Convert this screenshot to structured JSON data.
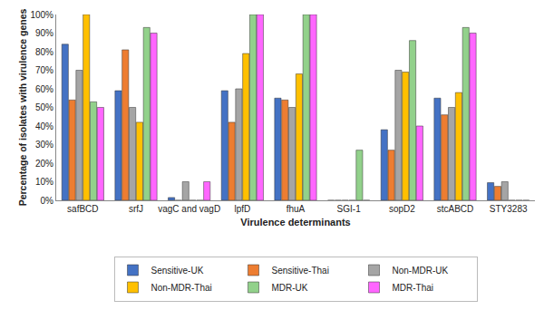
{
  "chart_data": {
    "type": "bar",
    "x_label": "Virulence determinants",
    "y_label": "Percentage of isolates with virulence genes",
    "categories": [
      "safBCD",
      "srfJ",
      "vagC and vagD",
      "lpfD",
      "fhuA",
      "SGI-1",
      "sopD2",
      "stcABCD",
      "STY3283"
    ],
    "series": [
      {
        "name": "Sensitive-UK",
        "color": "#4472c4",
        "values": [
          84,
          59,
          1.5,
          59,
          55,
          0,
          38,
          55,
          9.5
        ]
      },
      {
        "name": "Sensitive-Thai",
        "color": "#ed7d31",
        "values": [
          54,
          81,
          0,
          42,
          54,
          0,
          27,
          46,
          7.5
        ]
      },
      {
        "name": "Non-MDR-UK",
        "color": "#a5a5a5",
        "values": [
          70,
          50,
          10,
          60,
          50,
          0,
          70,
          50,
          10
        ]
      },
      {
        "name": "Non-MDR-Thai",
        "color": "#ffc000",
        "values": [
          100,
          42,
          0,
          79,
          68,
          0,
          69,
          58,
          0
        ]
      },
      {
        "name": "MDR-UK",
        "color": "#92d18b",
        "values": [
          53,
          93,
          0,
          100,
          100,
          27,
          86,
          93,
          0
        ]
      },
      {
        "name": "MDR-Thai",
        "color": "#ff66ff",
        "values": [
          50,
          90,
          10,
          100,
          100,
          0,
          40,
          90,
          0
        ]
      }
    ],
    "ylim": [
      0,
      100
    ],
    "yticks": [
      {
        "value": 0,
        "label": "0%"
      },
      {
        "value": 10,
        "label": "10%"
      },
      {
        "value": 20,
        "label": "20%"
      },
      {
        "value": 30,
        "label": "30%"
      },
      {
        "value": 40,
        "label": "40%"
      },
      {
        "value": 50,
        "label": "50%"
      },
      {
        "value": 60,
        "label": "60%"
      },
      {
        "value": 70,
        "label": "70%"
      },
      {
        "value": 80,
        "label": "80%"
      },
      {
        "value": 90,
        "label": "90%"
      },
      {
        "value": 100,
        "label": "100%"
      }
    ],
    "grid": false,
    "legend": "bottom"
  }
}
